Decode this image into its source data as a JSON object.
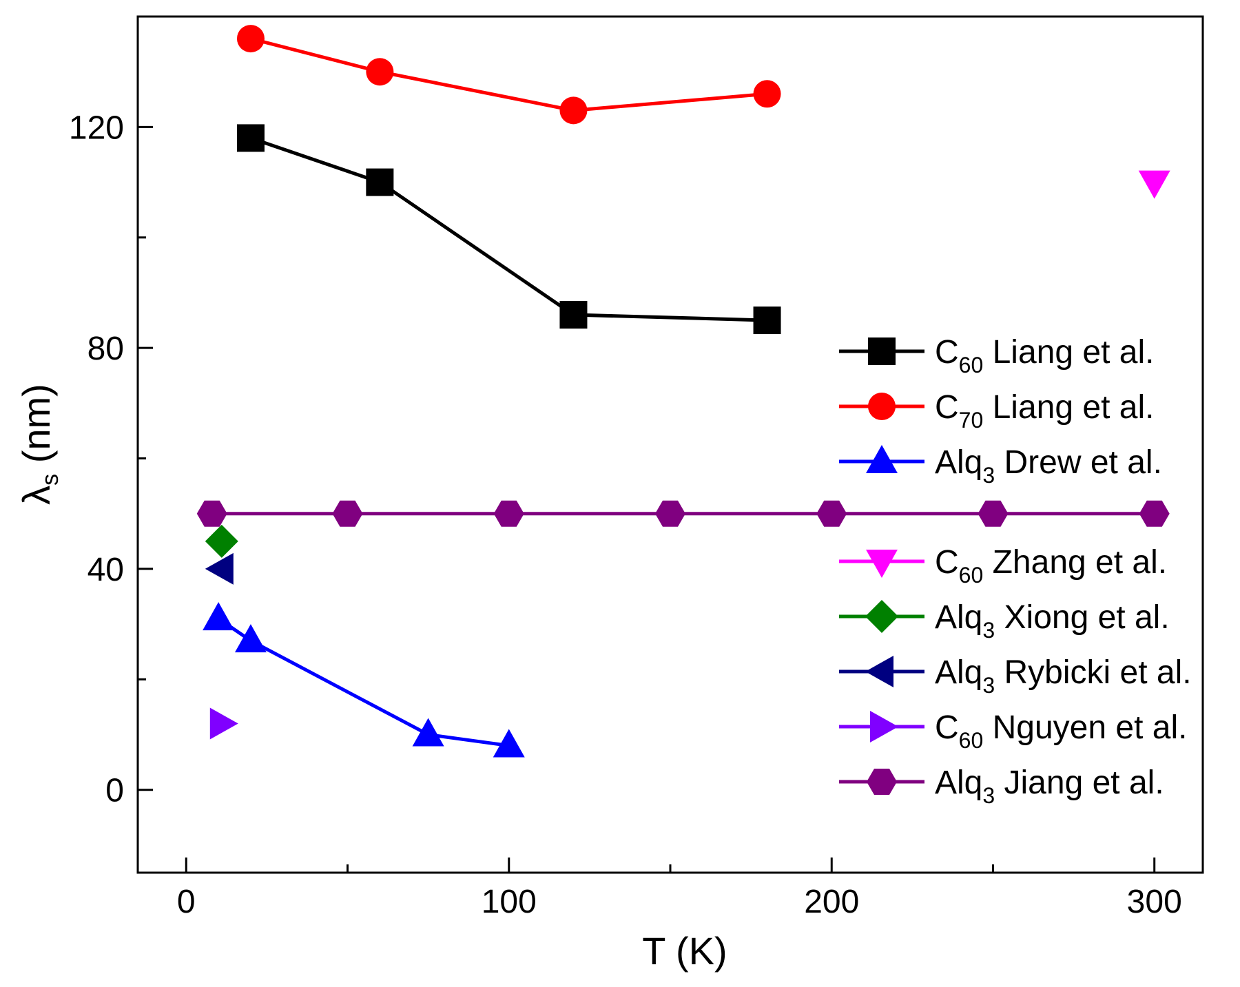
{
  "chart_data": {
    "type": "scatter",
    "title": "",
    "xlabel": "T (K)",
    "ylabel": {
      "main": "λ",
      "sub": "s",
      "unit": " (nm)"
    },
    "xlim": [
      -15,
      315
    ],
    "ylim": [
      -15,
      140
    ],
    "x_ticks": [
      0,
      100,
      200,
      300
    ],
    "x_minor_ticks": [
      50,
      150,
      250
    ],
    "y_ticks": [
      0,
      40,
      80,
      120
    ],
    "y_minor_ticks": [
      20,
      60,
      100
    ],
    "grid": false,
    "legend_position": "right",
    "series": [
      {
        "id": "c60-liang",
        "label": {
          "main": "C",
          "sub": "60",
          "rest": " Liang et al."
        },
        "color": "#000000",
        "marker": "square",
        "line": true,
        "x": [
          20,
          60,
          120,
          180
        ],
        "y": [
          118,
          110,
          86,
          85
        ]
      },
      {
        "id": "c70-liang",
        "label": {
          "main": "C",
          "sub": "70",
          "rest": " Liang et al."
        },
        "color": "#ff0000",
        "marker": "circle",
        "line": true,
        "x": [
          20,
          60,
          120,
          180
        ],
        "y": [
          136,
          130,
          123,
          126
        ]
      },
      {
        "id": "alq3-drew",
        "label": {
          "main": "Alq",
          "sub": "3",
          "rest": " Drew et al."
        },
        "color": "#0000ff",
        "marker": "triangle-up",
        "line": true,
        "x": [
          10,
          20,
          75,
          100
        ],
        "y": [
          31,
          27,
          10,
          8
        ]
      },
      {
        "id": "c60-zhang",
        "label": {
          "main": "C",
          "sub": "60",
          "rest": " Zhang et al."
        },
        "color": "#ff00ff",
        "marker": "triangle-down",
        "line": false,
        "x": [
          300
        ],
        "y": [
          110
        ]
      },
      {
        "id": "alq3-xiong",
        "label": {
          "main": "Alq",
          "sub": "3",
          "rest": " Xiong et al."
        },
        "color": "#008000",
        "marker": "diamond",
        "line": false,
        "x": [
          11
        ],
        "y": [
          45
        ]
      },
      {
        "id": "alq3-rybicki",
        "label": {
          "main": "Alq",
          "sub": "3",
          "rest": " Rybicki et al."
        },
        "color": "#000080",
        "marker": "triangle-left",
        "line": false,
        "x": [
          11
        ],
        "y": [
          40
        ]
      },
      {
        "id": "c60-nguyen",
        "label": {
          "main": "C",
          "sub": "60",
          "rest": " Nguyen et al."
        },
        "color": "#8000ff",
        "marker": "triangle-right",
        "line": false,
        "x": [
          11
        ],
        "y": [
          12
        ]
      },
      {
        "id": "alq3-jiang",
        "label": {
          "main": "Alq",
          "sub": "3",
          "rest": "  Jiang et al."
        },
        "color": "#800080",
        "marker": "hexagon",
        "line": true,
        "x": [
          8,
          50,
          100,
          150,
          200,
          250,
          300
        ],
        "y": [
          50,
          50,
          50,
          50,
          50,
          50,
          50
        ]
      }
    ]
  }
}
